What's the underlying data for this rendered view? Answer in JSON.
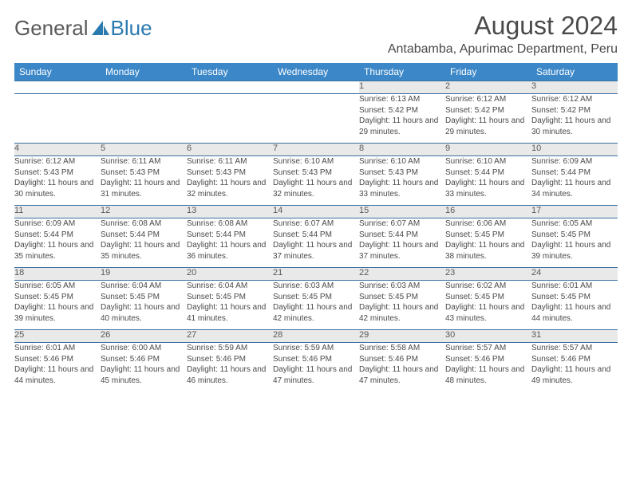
{
  "logo": {
    "text1": "General",
    "text2": "Blue"
  },
  "title": "August 2024",
  "location": "Antabamba, Apurimac Department, Peru",
  "colors": {
    "header_bg": "#3b87c8",
    "header_fg": "#ffffff",
    "daynum_bg": "#e9e9e9",
    "rule": "#3b6fa0",
    "text": "#4a4a4a",
    "logo_gray": "#595959",
    "logo_blue": "#2a7ab0"
  },
  "weekdays": [
    "Sunday",
    "Monday",
    "Tuesday",
    "Wednesday",
    "Thursday",
    "Friday",
    "Saturday"
  ],
  "weeks": [
    [
      null,
      null,
      null,
      null,
      {
        "n": "1",
        "sr": "6:13 AM",
        "ss": "5:42 PM",
        "dl": "11 hours and 29 minutes."
      },
      {
        "n": "2",
        "sr": "6:12 AM",
        "ss": "5:42 PM",
        "dl": "11 hours and 29 minutes."
      },
      {
        "n": "3",
        "sr": "6:12 AM",
        "ss": "5:42 PM",
        "dl": "11 hours and 30 minutes."
      }
    ],
    [
      {
        "n": "4",
        "sr": "6:12 AM",
        "ss": "5:43 PM",
        "dl": "11 hours and 30 minutes."
      },
      {
        "n": "5",
        "sr": "6:11 AM",
        "ss": "5:43 PM",
        "dl": "11 hours and 31 minutes."
      },
      {
        "n": "6",
        "sr": "6:11 AM",
        "ss": "5:43 PM",
        "dl": "11 hours and 32 minutes."
      },
      {
        "n": "7",
        "sr": "6:10 AM",
        "ss": "5:43 PM",
        "dl": "11 hours and 32 minutes."
      },
      {
        "n": "8",
        "sr": "6:10 AM",
        "ss": "5:43 PM",
        "dl": "11 hours and 33 minutes."
      },
      {
        "n": "9",
        "sr": "6:10 AM",
        "ss": "5:44 PM",
        "dl": "11 hours and 33 minutes."
      },
      {
        "n": "10",
        "sr": "6:09 AM",
        "ss": "5:44 PM",
        "dl": "11 hours and 34 minutes."
      }
    ],
    [
      {
        "n": "11",
        "sr": "6:09 AM",
        "ss": "5:44 PM",
        "dl": "11 hours and 35 minutes."
      },
      {
        "n": "12",
        "sr": "6:08 AM",
        "ss": "5:44 PM",
        "dl": "11 hours and 35 minutes."
      },
      {
        "n": "13",
        "sr": "6:08 AM",
        "ss": "5:44 PM",
        "dl": "11 hours and 36 minutes."
      },
      {
        "n": "14",
        "sr": "6:07 AM",
        "ss": "5:44 PM",
        "dl": "11 hours and 37 minutes."
      },
      {
        "n": "15",
        "sr": "6:07 AM",
        "ss": "5:44 PM",
        "dl": "11 hours and 37 minutes."
      },
      {
        "n": "16",
        "sr": "6:06 AM",
        "ss": "5:45 PM",
        "dl": "11 hours and 38 minutes."
      },
      {
        "n": "17",
        "sr": "6:05 AM",
        "ss": "5:45 PM",
        "dl": "11 hours and 39 minutes."
      }
    ],
    [
      {
        "n": "18",
        "sr": "6:05 AM",
        "ss": "5:45 PM",
        "dl": "11 hours and 39 minutes."
      },
      {
        "n": "19",
        "sr": "6:04 AM",
        "ss": "5:45 PM",
        "dl": "11 hours and 40 minutes."
      },
      {
        "n": "20",
        "sr": "6:04 AM",
        "ss": "5:45 PM",
        "dl": "11 hours and 41 minutes."
      },
      {
        "n": "21",
        "sr": "6:03 AM",
        "ss": "5:45 PM",
        "dl": "11 hours and 42 minutes."
      },
      {
        "n": "22",
        "sr": "6:03 AM",
        "ss": "5:45 PM",
        "dl": "11 hours and 42 minutes."
      },
      {
        "n": "23",
        "sr": "6:02 AM",
        "ss": "5:45 PM",
        "dl": "11 hours and 43 minutes."
      },
      {
        "n": "24",
        "sr": "6:01 AM",
        "ss": "5:45 PM",
        "dl": "11 hours and 44 minutes."
      }
    ],
    [
      {
        "n": "25",
        "sr": "6:01 AM",
        "ss": "5:46 PM",
        "dl": "11 hours and 44 minutes."
      },
      {
        "n": "26",
        "sr": "6:00 AM",
        "ss": "5:46 PM",
        "dl": "11 hours and 45 minutes."
      },
      {
        "n": "27",
        "sr": "5:59 AM",
        "ss": "5:46 PM",
        "dl": "11 hours and 46 minutes."
      },
      {
        "n": "28",
        "sr": "5:59 AM",
        "ss": "5:46 PM",
        "dl": "11 hours and 47 minutes."
      },
      {
        "n": "29",
        "sr": "5:58 AM",
        "ss": "5:46 PM",
        "dl": "11 hours and 47 minutes."
      },
      {
        "n": "30",
        "sr": "5:57 AM",
        "ss": "5:46 PM",
        "dl": "11 hours and 48 minutes."
      },
      {
        "n": "31",
        "sr": "5:57 AM",
        "ss": "5:46 PM",
        "dl": "11 hours and 49 minutes."
      }
    ]
  ],
  "labels": {
    "sunrise": "Sunrise:",
    "sunset": "Sunset:",
    "daylight": "Daylight:"
  }
}
